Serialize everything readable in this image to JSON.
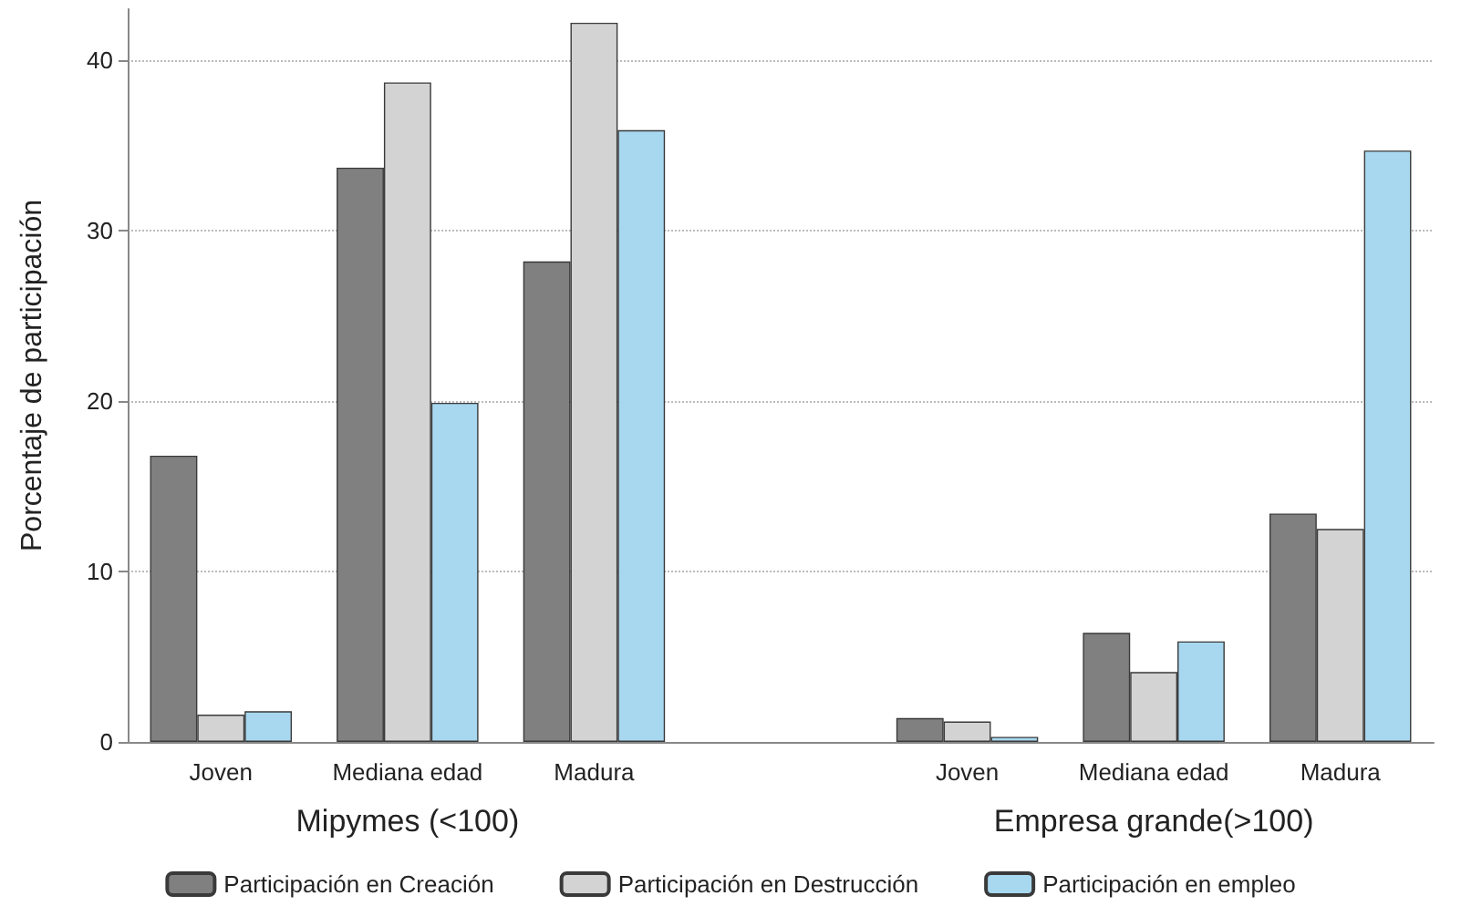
{
  "chart_data": {
    "type": "bar",
    "ylabel": "Porcentaje de participación",
    "categories": [
      "Joven",
      "Mediana edad",
      "Madura",
      null,
      "Joven",
      "Mediana edad",
      "Madura"
    ],
    "series": [
      {
        "name": "Participación en Creación",
        "color": "#808080",
        "values": [
          16.8,
          33.7,
          28.2,
          null,
          1.4,
          6.4,
          13.4
        ]
      },
      {
        "name": "Participación en Destrucción",
        "color": "#d3d3d3",
        "values": [
          1.6,
          38.7,
          42.2,
          null,
          1.2,
          4.1,
          12.5
        ]
      },
      {
        "name": "Participación en empleo",
        "color": "#a8d8f0",
        "values": [
          1.8,
          19.9,
          35.9,
          null,
          0.3,
          5.9,
          34.7
        ]
      }
    ],
    "annotations": [
      "Mipymes (<100)",
      "Empresa grande(>100)"
    ],
    "ylim": [
      0,
      43
    ],
    "yticks": [
      0,
      10,
      20,
      30,
      40
    ],
    "grid": "y",
    "legend": "bottom"
  }
}
